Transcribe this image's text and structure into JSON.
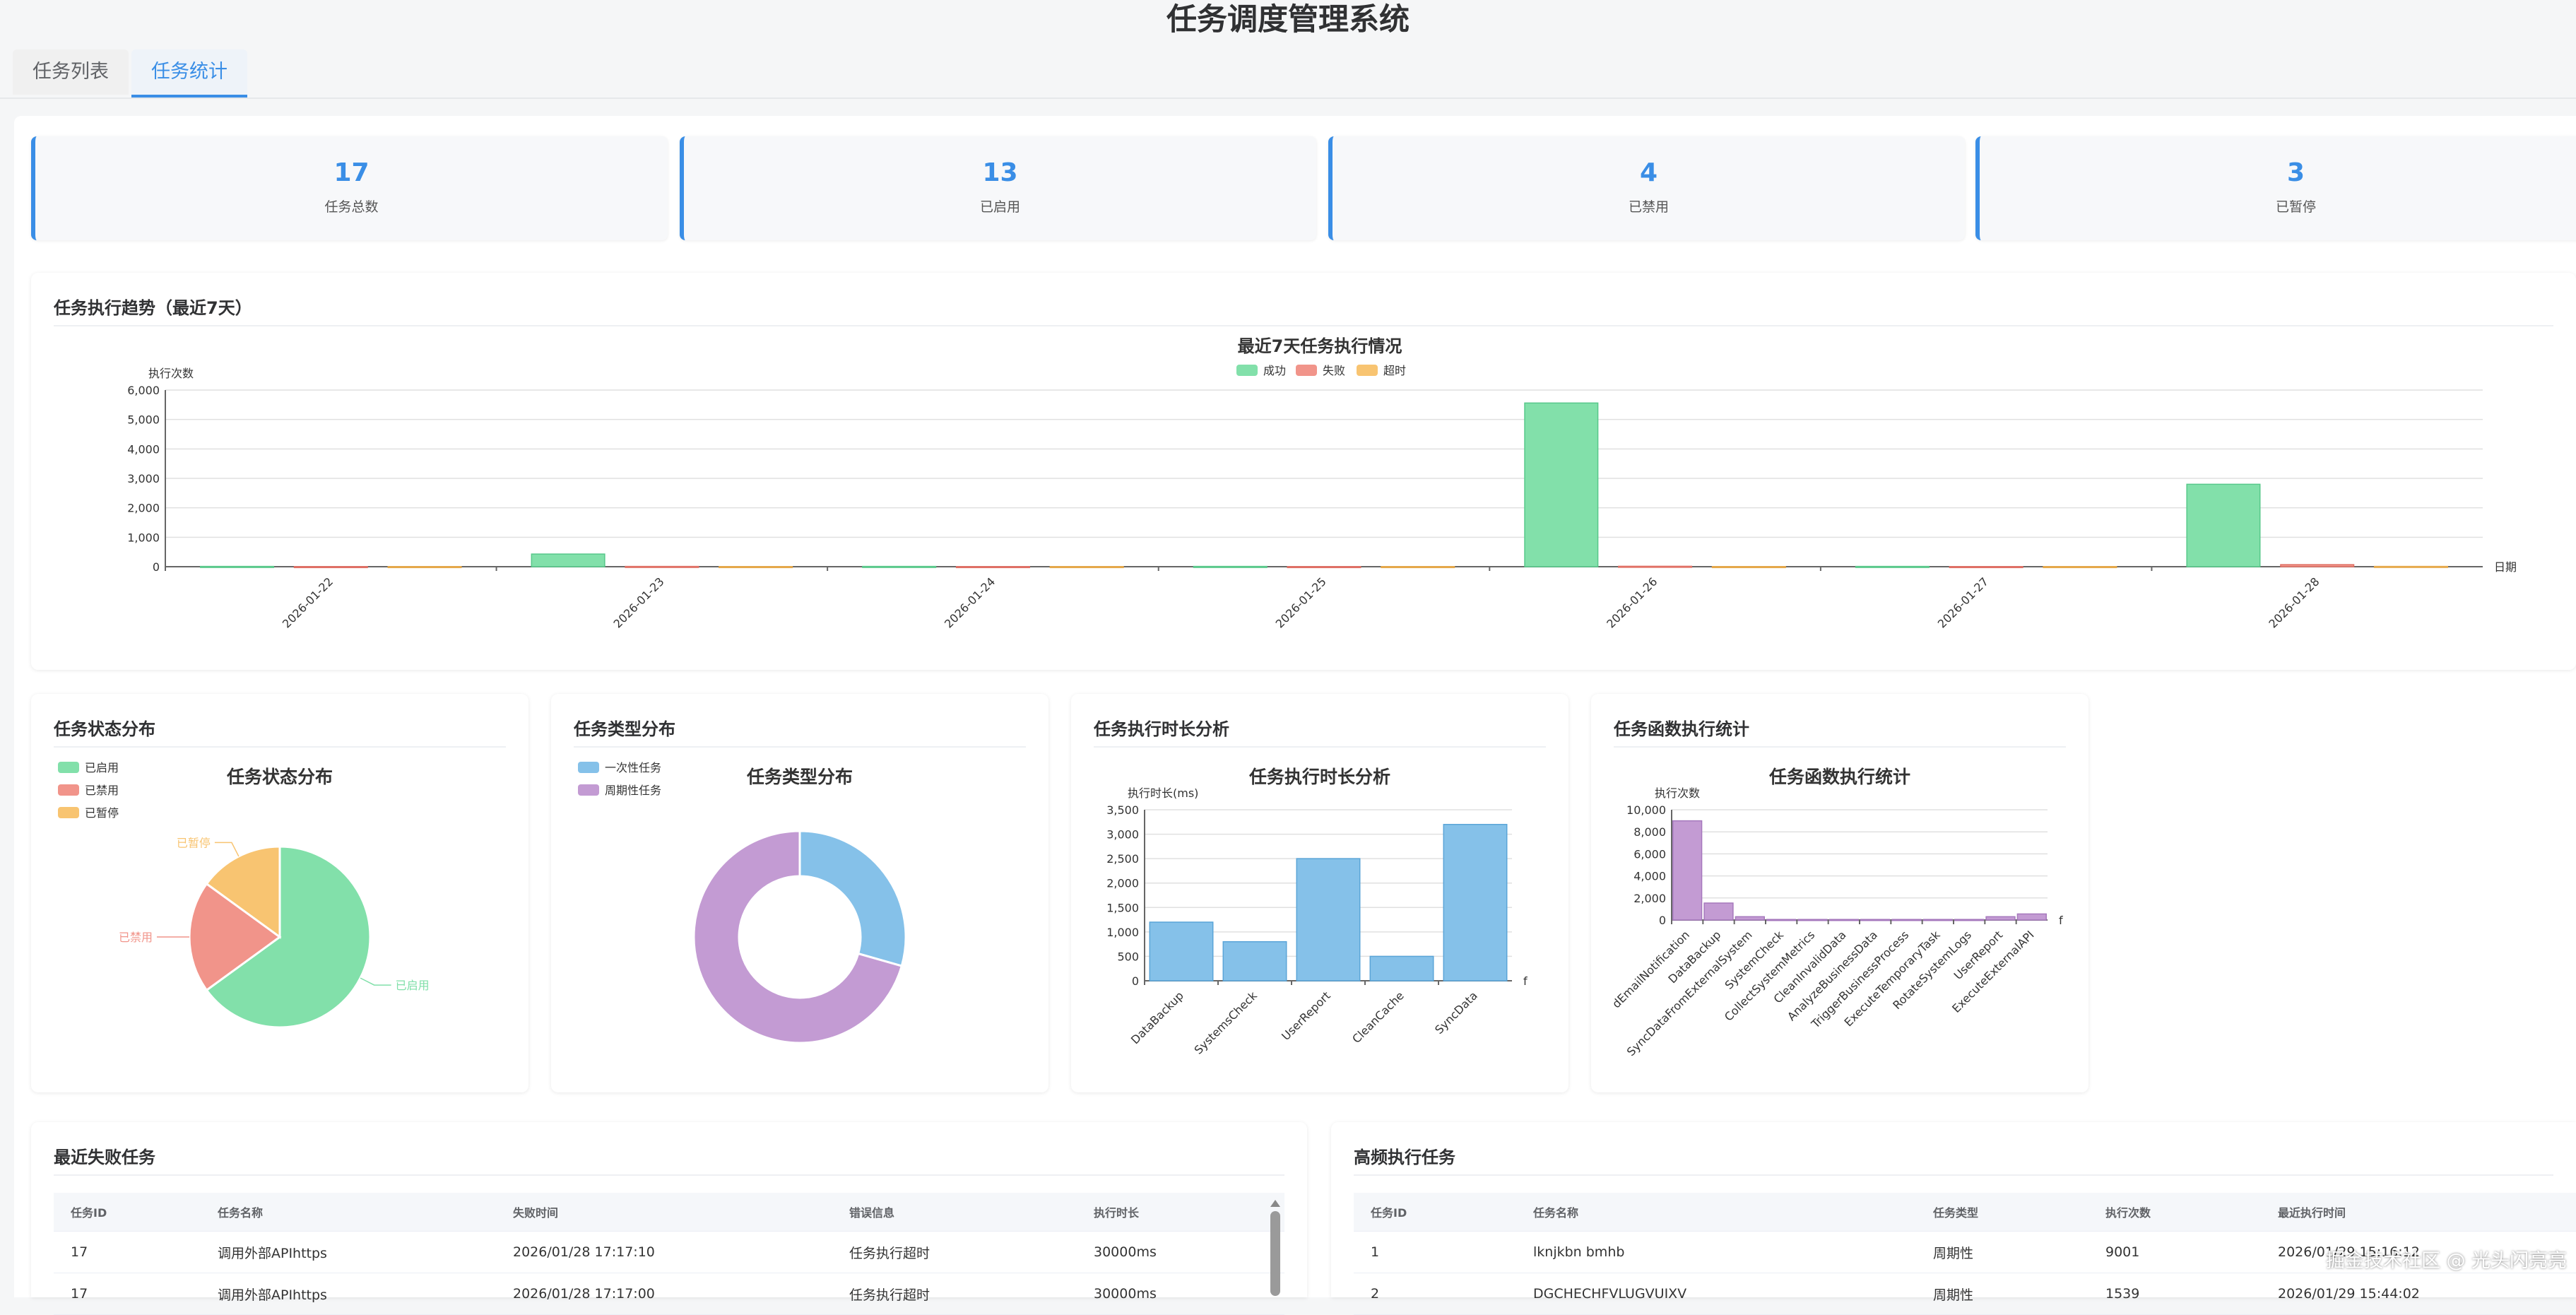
{
  "app": {
    "title": "任务调度管理系统"
  },
  "tabs": [
    {
      "label": "任务列表"
    },
    {
      "label": "任务统计"
    }
  ],
  "stats": [
    {
      "value": "17",
      "label": "任务总数"
    },
    {
      "value": "13",
      "label": "已启用"
    },
    {
      "value": "4",
      "label": "已禁用"
    },
    {
      "value": "3",
      "label": "已暂停"
    }
  ],
  "colors": {
    "success": "#82e0aa",
    "fail": "#f1948a",
    "timeout": "#f8c471",
    "blue": "#85c1e9",
    "purple": "#c39bd3",
    "accent": "#3a8ee6"
  },
  "trend_panel": {
    "title": "任务执行趋势（最近7天）"
  },
  "status_panel": {
    "title": "任务状态分布"
  },
  "type_panel": {
    "title": "任务类型分布"
  },
  "duration_panel": {
    "title": "任务执行时长分析"
  },
  "func_panel": {
    "title": "任务函数执行统计"
  },
  "chart_data": [
    {
      "type": "bar",
      "title": "最近7天任务执行情况",
      "ylabel": "执行次数",
      "xlabel": "日期",
      "categories": [
        "2026-01-22",
        "2026-01-23",
        "2026-01-24",
        "2026-01-25",
        "2026-01-26",
        "2026-01-27",
        "2026-01-28"
      ],
      "series": [
        {
          "name": "成功",
          "values": [
            10,
            430,
            10,
            10,
            5560,
            10,
            2800
          ]
        },
        {
          "name": "失败",
          "values": [
            5,
            10,
            5,
            5,
            15,
            5,
            70
          ]
        },
        {
          "name": "超时",
          "values": [
            5,
            5,
            5,
            5,
            5,
            5,
            10
          ]
        }
      ],
      "ylim": [
        0,
        6000
      ],
      "yticks": [
        "0",
        "1,000",
        "2,000",
        "3,000",
        "4,000",
        "5,000",
        "6,000"
      ],
      "grid": true,
      "legend": "top-center"
    },
    {
      "type": "pie",
      "title": "任务状态分布",
      "series": [
        {
          "name": "已启用",
          "value": 13
        },
        {
          "name": "已禁用",
          "value": 4
        },
        {
          "name": "已暂停",
          "value": 3
        }
      ],
      "legend": "top-left"
    },
    {
      "type": "pie",
      "title": "任务类型分布",
      "series": [
        {
          "name": "一次性任务",
          "value": 5
        },
        {
          "name": "周期性任务",
          "value": 12
        }
      ],
      "legend": "top-left"
    },
    {
      "type": "bar",
      "title": "任务执行时长分析",
      "ylabel": "执行时长(ms)",
      "xlabel": "f",
      "categories": [
        "DataBackup",
        "SystemsCheck",
        "UserReport",
        "CleanCache",
        "SyncData"
      ],
      "values": [
        1200,
        800,
        2500,
        500,
        3200
      ],
      "ylim": [
        0,
        3500
      ],
      "yticks": [
        "0",
        "500",
        "1,000",
        "1,500",
        "2,000",
        "2,500",
        "3,000",
        "3,500"
      ],
      "grid": true
    },
    {
      "type": "bar",
      "title": "任务函数执行统计",
      "ylabel": "执行次数",
      "xlabel": "f",
      "categories": [
        "dEmailNotification",
        "DataBackup",
        "SyncDataFromExternalSystem",
        "SystemCheck",
        "CollectSystemMetrics",
        "CleanInvalidData",
        "AnalyzeBusinessData",
        "TriggerBusinessProcess",
        "ExecuteTemporaryTask",
        "RotateSystemLogs",
        "UserReport",
        "ExecuteExternalAPI"
      ],
      "values": [
        9000,
        1539,
        300,
        50,
        50,
        50,
        50,
        50,
        50,
        50,
        300,
        550
      ],
      "ylim": [
        0,
        10000
      ],
      "yticks": [
        "0",
        "2,000",
        "4,000",
        "6,000",
        "8,000",
        "10,000"
      ],
      "grid": true
    }
  ],
  "failed_panel": {
    "title": "最近失败任务",
    "columns": [
      "任务ID",
      "任务名称",
      "失败时间",
      "错误信息",
      "执行时长"
    ],
    "rows": [
      [
        "17",
        "调用外部APIhttps",
        "2026/01/28 17:17:10",
        "任务执行超时",
        "30000ms"
      ],
      [
        "17",
        "调用外部APIhttps",
        "2026/01/28 17:17:00",
        "任务执行超时",
        "30000ms"
      ]
    ]
  },
  "frequent_panel": {
    "title": "高频执行任务",
    "columns": [
      "任务ID",
      "任务名称",
      "任务类型",
      "执行次数",
      "最近执行时间"
    ],
    "rows": [
      [
        "1",
        "lknjkbn bmhb",
        "周期性",
        "9001",
        "2026/01/29 15:16:12"
      ],
      [
        "2",
        "DGCHECHFVLUGVUIXV",
        "周期性",
        "1539",
        "2026/01/29 15:44:02"
      ]
    ]
  },
  "watermark": "掘金技术社区 @ 光头闪亮亮"
}
